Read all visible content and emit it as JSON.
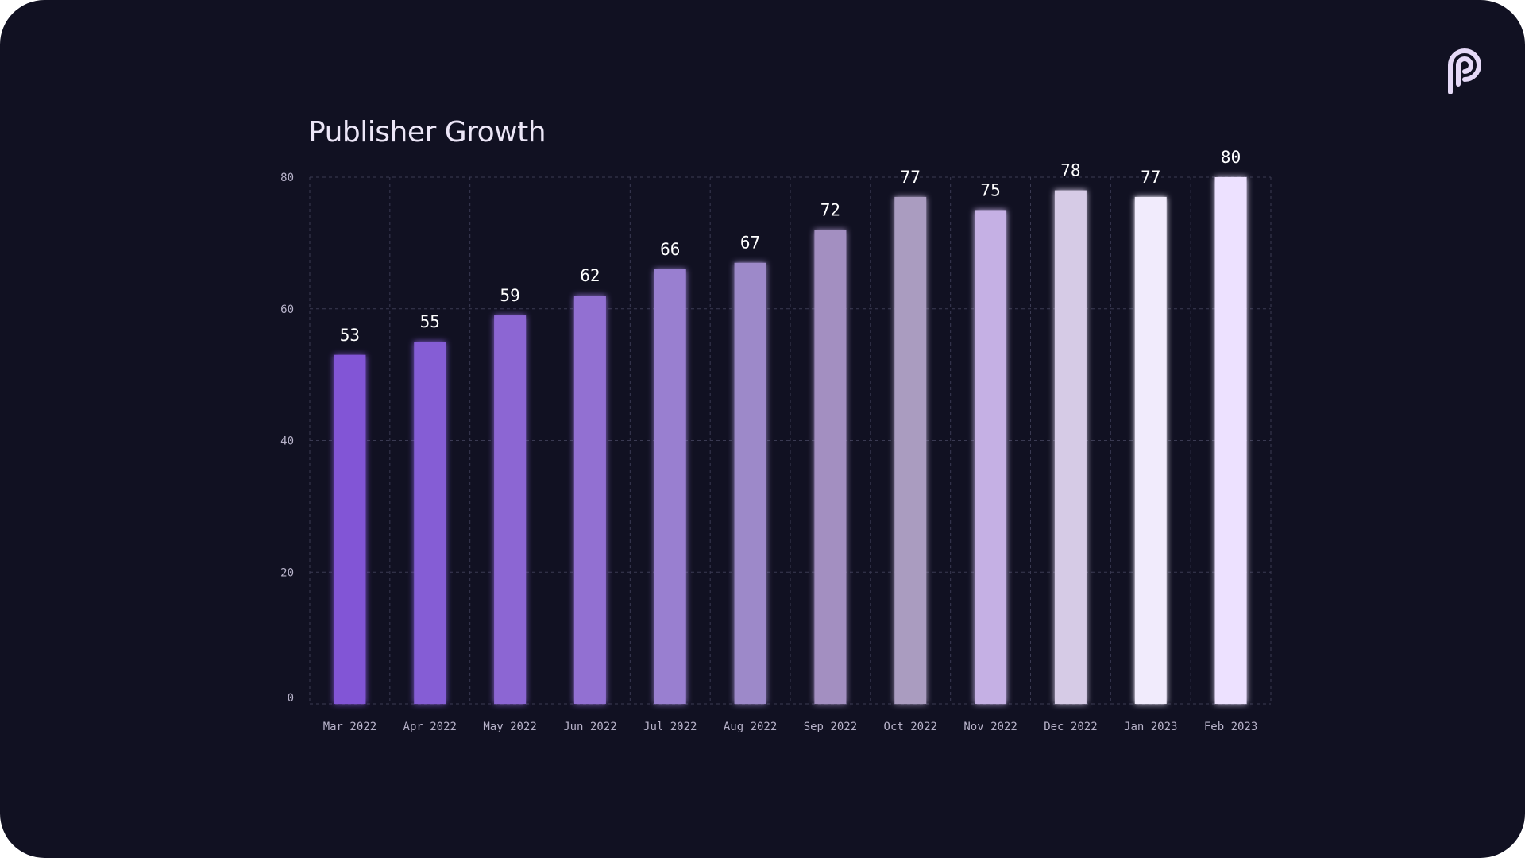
{
  "chart_data": {
    "type": "bar",
    "title": "Publisher Growth",
    "xlabel": "",
    "ylabel": "",
    "categories": [
      "Mar 2022",
      "Apr 2022",
      "May 2022",
      "Jun 2022",
      "Jul 2022",
      "Aug 2022",
      "Sep 2022",
      "Oct 2022",
      "Nov 2022",
      "Dec 2022",
      "Jan 2023",
      "Feb 2023"
    ],
    "values": [
      53,
      55,
      59,
      62,
      66,
      67,
      72,
      77,
      75,
      78,
      77,
      80
    ],
    "value_labels": [
      "53",
      "55",
      "59",
      "62",
      "66",
      "67",
      "72",
      "77",
      "75",
      "78",
      "77",
      "80"
    ],
    "ylim": [
      0,
      80
    ],
    "yticks": [
      "0",
      "20",
      "40",
      "60",
      "80"
    ],
    "grid": true,
    "legend": "none",
    "bar_colors": [
      "#8255d6",
      "#855dd5",
      "#8c66d3",
      "#9270d2",
      "#997fd0",
      "#9d89c9",
      "#a38fc1",
      "#aa9cc0",
      "#c5b0e4",
      "#d6cbe6",
      "#f1ebfc",
      "#ede1ff"
    ]
  },
  "background_color": "#111122",
  "logo_icon": "publisher-p-logo-icon"
}
